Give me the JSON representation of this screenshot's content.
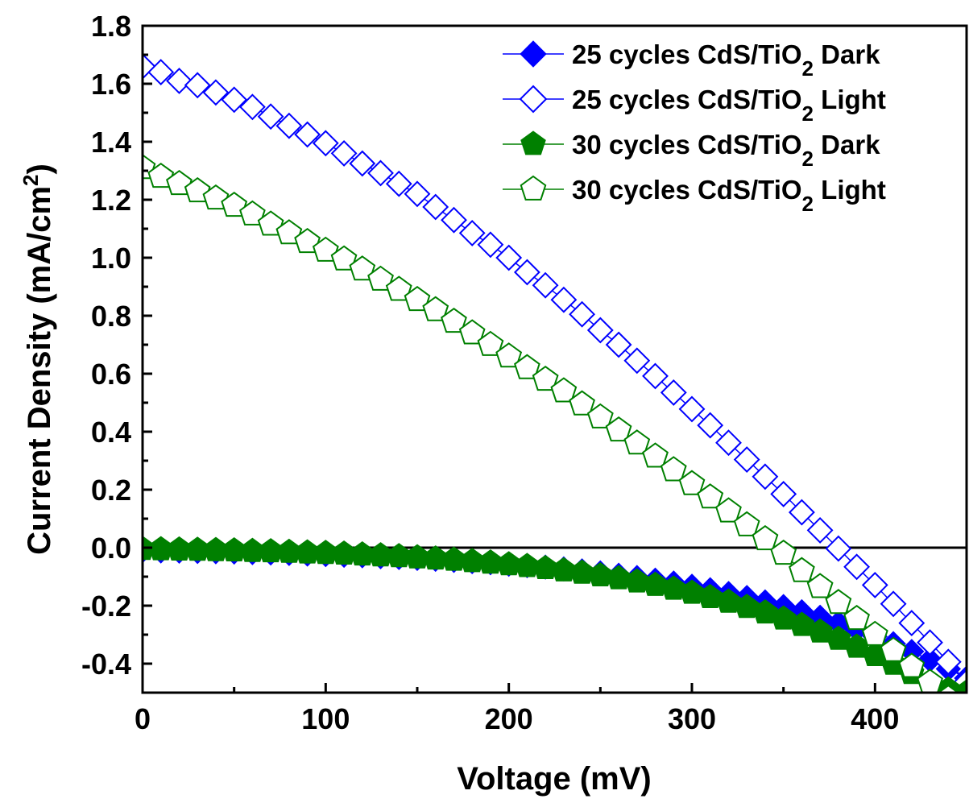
{
  "chart_data": {
    "type": "scatter",
    "xlabel": "Voltage (mV)",
    "ylabel": "Current Density (mA/cm2)",
    "ylabel_parts": {
      "pre": "Current Density (mA/cm",
      "sup": "2",
      "post": ")"
    },
    "xlim": [
      0,
      450
    ],
    "ylim": [
      -0.5,
      1.8
    ],
    "xticks": [
      0,
      100,
      200,
      300,
      400
    ],
    "yticks": [
      -0.4,
      -0.2,
      0.0,
      0.2,
      0.4,
      0.6,
      0.8,
      1.0,
      1.2,
      1.4,
      1.6,
      1.8
    ],
    "ytick_labels": [
      "-0.4",
      "-0.2",
      "0.0",
      "0.2",
      "0.4",
      "0.6",
      "0.8",
      "1.0",
      "1.2",
      "1.4",
      "1.6",
      "1.8"
    ],
    "grid": false,
    "legend_position": "top-right",
    "reference_line_y": 0,
    "x": [
      0,
      10,
      20,
      30,
      40,
      50,
      60,
      70,
      80,
      90,
      100,
      110,
      120,
      130,
      140,
      150,
      160,
      170,
      180,
      190,
      200,
      210,
      220,
      230,
      240,
      250,
      260,
      270,
      280,
      290,
      300,
      310,
      320,
      330,
      340,
      350,
      360,
      370,
      380,
      390,
      400,
      410,
      420,
      430,
      440,
      450
    ],
    "series": [
      {
        "name": "25 cycles CdS/TiO2 Dark",
        "name_parts": {
          "pre": "25 cycles CdS/TiO",
          "sub": "2",
          "post": " Dark"
        },
        "color": "#0000ff",
        "marker": "diamond",
        "filled": true,
        "y": [
          -0.01,
          -0.011,
          -0.012,
          -0.013,
          -0.014,
          -0.015,
          -0.017,
          -0.018,
          -0.02,
          -0.022,
          -0.024,
          -0.026,
          -0.028,
          -0.031,
          -0.034,
          -0.037,
          -0.04,
          -0.044,
          -0.048,
          -0.052,
          -0.057,
          -0.062,
          -0.067,
          -0.073,
          -0.08,
          -0.087,
          -0.095,
          -0.103,
          -0.112,
          -0.122,
          -0.133,
          -0.145,
          -0.158,
          -0.172,
          -0.187,
          -0.203,
          -0.221,
          -0.24,
          -0.26,
          -0.282,
          -0.306,
          -0.331,
          -0.358,
          -0.387,
          -0.418,
          -0.45
        ]
      },
      {
        "name": "25 cycles CdS/TiO2 Light",
        "name_parts": {
          "pre": "25 cycles CdS/TiO",
          "sub": "2",
          "post": " Light"
        },
        "color": "#0000ff",
        "marker": "diamond",
        "filled": false,
        "y": [
          1.66,
          1.64,
          1.61,
          1.595,
          1.57,
          1.545,
          1.52,
          1.487,
          1.455,
          1.425,
          1.395,
          1.36,
          1.325,
          1.292,
          1.255,
          1.22,
          1.175,
          1.13,
          1.085,
          1.045,
          1.0,
          0.95,
          0.905,
          0.855,
          0.805,
          0.75,
          0.7,
          0.645,
          0.592,
          0.535,
          0.478,
          0.422,
          0.362,
          0.304,
          0.245,
          0.185,
          0.122,
          0.06,
          -0.003,
          -0.066,
          -0.129,
          -0.194,
          -0.26,
          -0.327,
          -0.394,
          -0.463
        ]
      },
      {
        "name": "30 cycles CdS/TiO2 Dark",
        "name_parts": {
          "pre": "30 cycles CdS/TiO",
          "sub": "2",
          "post": " Dark"
        },
        "color": "#008000",
        "marker": "pentagon",
        "filled": true,
        "y": [
          -0.005,
          -0.006,
          -0.007,
          -0.008,
          -0.009,
          -0.01,
          -0.012,
          -0.013,
          -0.015,
          -0.017,
          -0.019,
          -0.021,
          -0.024,
          -0.027,
          -0.03,
          -0.034,
          -0.038,
          -0.042,
          -0.047,
          -0.052,
          -0.058,
          -0.064,
          -0.071,
          -0.079,
          -0.087,
          -0.096,
          -0.106,
          -0.117,
          -0.129,
          -0.142,
          -0.156,
          -0.171,
          -0.187,
          -0.205,
          -0.224,
          -0.245,
          -0.267,
          -0.29,
          -0.315,
          -0.342,
          -0.371,
          -0.401,
          -0.433,
          -0.467,
          -0.49,
          -0.5
        ]
      },
      {
        "name": "30 cycles CdS/TiO2 Light",
        "name_parts": {
          "pre": "30 cycles CdS/TiO",
          "sub": "2",
          "post": " Light"
        },
        "color": "#008000",
        "marker": "pentagon",
        "filled": false,
        "y": [
          1.31,
          1.28,
          1.255,
          1.23,
          1.205,
          1.18,
          1.15,
          1.115,
          1.085,
          1.055,
          1.025,
          0.995,
          0.96,
          0.925,
          0.89,
          0.855,
          0.82,
          0.78,
          0.74,
          0.7,
          0.66,
          0.62,
          0.58,
          0.54,
          0.495,
          0.45,
          0.405,
          0.36,
          0.315,
          0.268,
          0.22,
          0.174,
          0.126,
          0.078,
          0.03,
          -0.02,
          -0.08,
          -0.135,
          -0.19,
          -0.245,
          -0.3,
          -0.355,
          -0.41,
          -0.465,
          -0.52,
          -0.575
        ]
      }
    ]
  }
}
